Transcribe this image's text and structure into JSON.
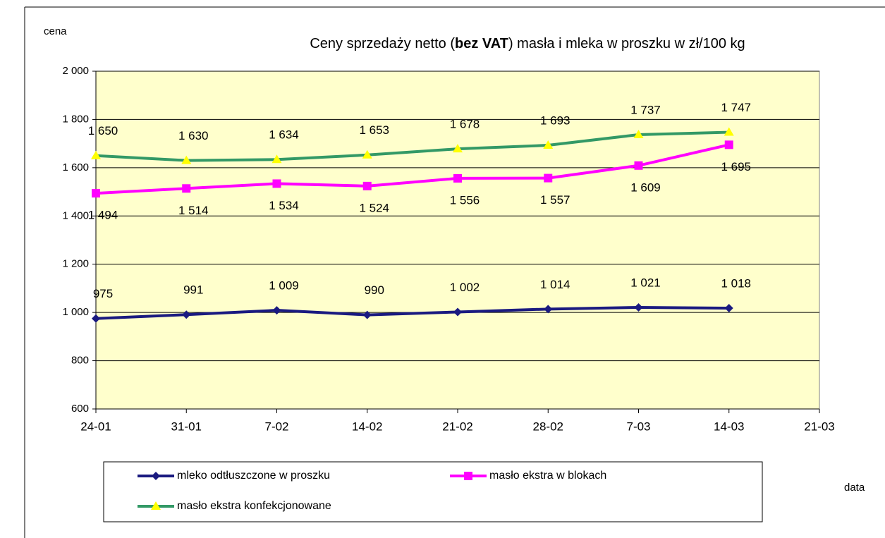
{
  "chart_data": {
    "type": "line",
    "title": [
      "Ceny sprzedaży netto (",
      "bez VAT",
      ") masła i mleka w proszku w zł/100 kg"
    ],
    "y_label": "cena",
    "x_label": "data",
    "categories": [
      "24-01",
      "31-01",
      "7-02",
      "14-02",
      "21-02",
      "28-02",
      "7-03",
      "14-03",
      "21-03"
    ],
    "series": [
      {
        "name": "mleko odtłuszczone w proszku",
        "color": "#1a1a80",
        "marker": "diamond",
        "marker_color": "#1a1a80",
        "values": [
          975,
          991,
          1009,
          990,
          1002,
          1014,
          1021,
          1018,
          null
        ],
        "value_labels": [
          "975",
          "991",
          "1 009",
          "990",
          "1 002",
          "1 014",
          "1 021",
          "1 018",
          null
        ]
      },
      {
        "name": "masło ekstra w blokach",
        "color": "#ff00ff",
        "marker": "square",
        "marker_color": "#ff00ff",
        "values": [
          1494,
          1514,
          1534,
          1524,
          1556,
          1557,
          1609,
          1695,
          null
        ],
        "value_labels": [
          "1 494",
          "1 514",
          "1 534",
          "1 524",
          "1 556",
          "1 557",
          "1 609",
          "1 695",
          null
        ]
      },
      {
        "name": "masło ekstra konfekcjonowane",
        "color": "#339966",
        "marker": "triangle",
        "marker_color": "#ffff00",
        "values": [
          1650,
          1630,
          1634,
          1653,
          1678,
          1693,
          1737,
          1747,
          null
        ],
        "value_labels": [
          "1 650",
          "1 630",
          "1 634",
          "1 653",
          "1 678",
          "1 693",
          "1 737",
          "1 747",
          null
        ]
      }
    ],
    "ylim": [
      600,
      2000
    ],
    "yticks": [
      600,
      800,
      {
        "value": 1000,
        "label": "1 000"
      },
      {
        "value": 1200,
        "label": "1 200"
      },
      {
        "value": 1400,
        "label": "1 400"
      },
      {
        "value": 1600,
        "label": "1 600"
      },
      {
        "value": 1800,
        "label": "1 800"
      },
      {
        "value": 2000,
        "label": "2 000"
      }
    ],
    "grid": true,
    "plot_background": "#ffffcc",
    "legend": "bottom"
  }
}
